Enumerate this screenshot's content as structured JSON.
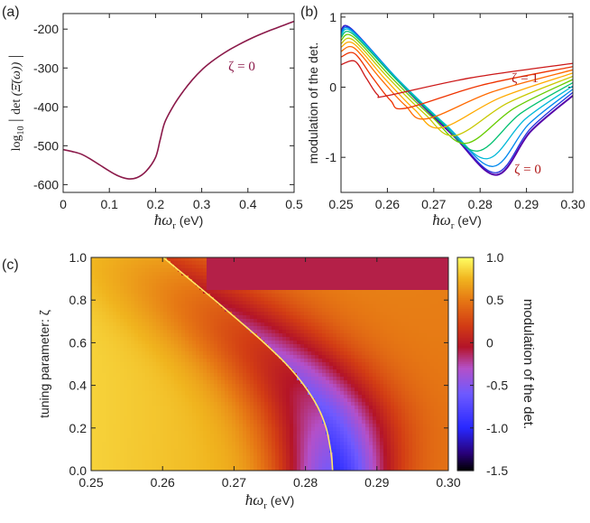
{
  "chart_data": [
    {
      "panel": "(a)",
      "type": "line",
      "ylabel": "log10 |det(Ξ̄(ω))|",
      "ylabel_parts": {
        "log": "log",
        "sub": "10",
        "det": "det",
        "arg": "(Ξ̄(ω))"
      },
      "xlabel": "ħωr (eV)",
      "xlabel_parts": {
        "hw": "ħω",
        "sub": "r",
        "unit": "(eV)"
      },
      "xlim": [
        0,
        0.5
      ],
      "ylim": [
        -620,
        -160
      ],
      "xticks": [
        0,
        0.1,
        0.2,
        0.3,
        0.4,
        0.5
      ],
      "xtick_labels": [
        "0",
        "0.1",
        "0.2",
        "0.3",
        "0.4",
        "0.5"
      ],
      "yticks": [
        -600,
        -500,
        -400,
        -300,
        -200
      ],
      "ytick_labels": [
        "-600",
        "-500",
        "-400",
        "-300",
        "-200"
      ],
      "annotation": "ζ = 0",
      "color": "#8b1a4a",
      "x": [
        0,
        0.02,
        0.04,
        0.06,
        0.08,
        0.1,
        0.12,
        0.14,
        0.16,
        0.18,
        0.2,
        0.21,
        0.22,
        0.24,
        0.26,
        0.28,
        0.3,
        0.32,
        0.34,
        0.36,
        0.38,
        0.4,
        0.42,
        0.44,
        0.46,
        0.48,
        0.5
      ],
      "y": [
        -510,
        -515,
        -522,
        -535,
        -550,
        -565,
        -578,
        -585,
        -582,
        -565,
        -530,
        -485,
        -440,
        -395,
        -360,
        -330,
        -305,
        -285,
        -268,
        -253,
        -240,
        -228,
        -217,
        -207,
        -198,
        -189,
        -180
      ]
    },
    {
      "panel": "(b)",
      "type": "line",
      "ylabel": "modulation of the det.",
      "xlabel": "ħωr (eV)",
      "xlabel_parts": {
        "hw": "ħω",
        "sub": "r",
        "unit": "(eV)"
      },
      "xlim": [
        0.25,
        0.3
      ],
      "ylim": [
        -1.5,
        1.05
      ],
      "xticks": [
        0.25,
        0.26,
        0.27,
        0.28,
        0.29,
        0.3
      ],
      "xtick_labels": [
        "0.25",
        "0.26",
        "0.27",
        "0.28",
        "0.29",
        "0.30"
      ],
      "yticks": [
        -1,
        0,
        1
      ],
      "ytick_labels": [
        "-1",
        "0",
        "1"
      ],
      "annotation_top": "ζ = 1",
      "annotation_bottom": "ζ = 0",
      "annotation_color": "#b01818",
      "series_zeta": [
        0,
        0.1,
        0.2,
        0.3,
        0.4,
        0.5,
        0.6,
        0.7,
        0.8,
        0.9,
        1.0
      ],
      "series_colors": [
        "#5500aa",
        "#2233dd",
        "#0088ee",
        "#00b8d8",
        "#00c070",
        "#66cc00",
        "#c8c800",
        "#ffaa00",
        "#ff6a00",
        "#ee3300",
        "#cc1818"
      ],
      "series_min_x": [
        0.2835,
        0.2834,
        0.2828,
        0.2815,
        0.2795,
        0.277,
        0.2745,
        0.2715,
        0.2685,
        0.264,
        0.26
      ],
      "series_min_y": [
        -1.25,
        -1.22,
        -1.13,
        -1.02,
        -0.91,
        -0.8,
        -0.69,
        -0.58,
        -0.45,
        -0.3,
        -0.12
      ],
      "series_start_y": [
        0.8,
        0.8,
        0.78,
        0.76,
        0.73,
        0.69,
        0.64,
        0.59,
        0.53,
        0.45,
        0.34
      ]
    },
    {
      "panel": "(c)",
      "type": "heatmap",
      "xlabel": "ħωr (eV)",
      "xlabel_parts": {
        "hw": "ħω",
        "sub": "r",
        "unit": "(eV)"
      },
      "ylabel": "tuning parameter: ζ",
      "xlim": [
        0.25,
        0.3
      ],
      "ylim": [
        0,
        1
      ],
      "xticks": [
        0.25,
        0.26,
        0.27,
        0.28,
        0.29,
        0.3
      ],
      "xtick_labels": [
        "0.25",
        "0.26",
        "0.27",
        "0.28",
        "0.29",
        "0.30"
      ],
      "yticks": [
        0,
        0.2,
        0.4,
        0.6,
        0.8,
        1.0
      ],
      "ytick_labels": [
        "0.0",
        "0.2",
        "0.4",
        "0.6",
        "0.8",
        "1.0"
      ],
      "colorbar": {
        "label": "modulation of the det.",
        "range": [
          -1.5,
          1.0
        ],
        "ticks": [
          1.0,
          0.5,
          0,
          -0.5,
          -1.0,
          -1.5
        ],
        "tick_labels": [
          "1.0",
          "0.5",
          "0",
          "-0.5",
          "-1.0",
          "-1.5"
        ]
      },
      "overlay_curve": {
        "color": "#ffe866",
        "zeta": [
          0,
          0.05,
          0.1,
          0.2,
          0.3,
          0.4,
          0.5,
          0.6,
          0.7,
          0.8,
          0.9,
          1.0
        ],
        "x": [
          0.2838,
          0.2837,
          0.2835,
          0.2829,
          0.2817,
          0.2798,
          0.2773,
          0.2742,
          0.2708,
          0.2673,
          0.2637,
          0.2601
        ]
      }
    }
  ]
}
